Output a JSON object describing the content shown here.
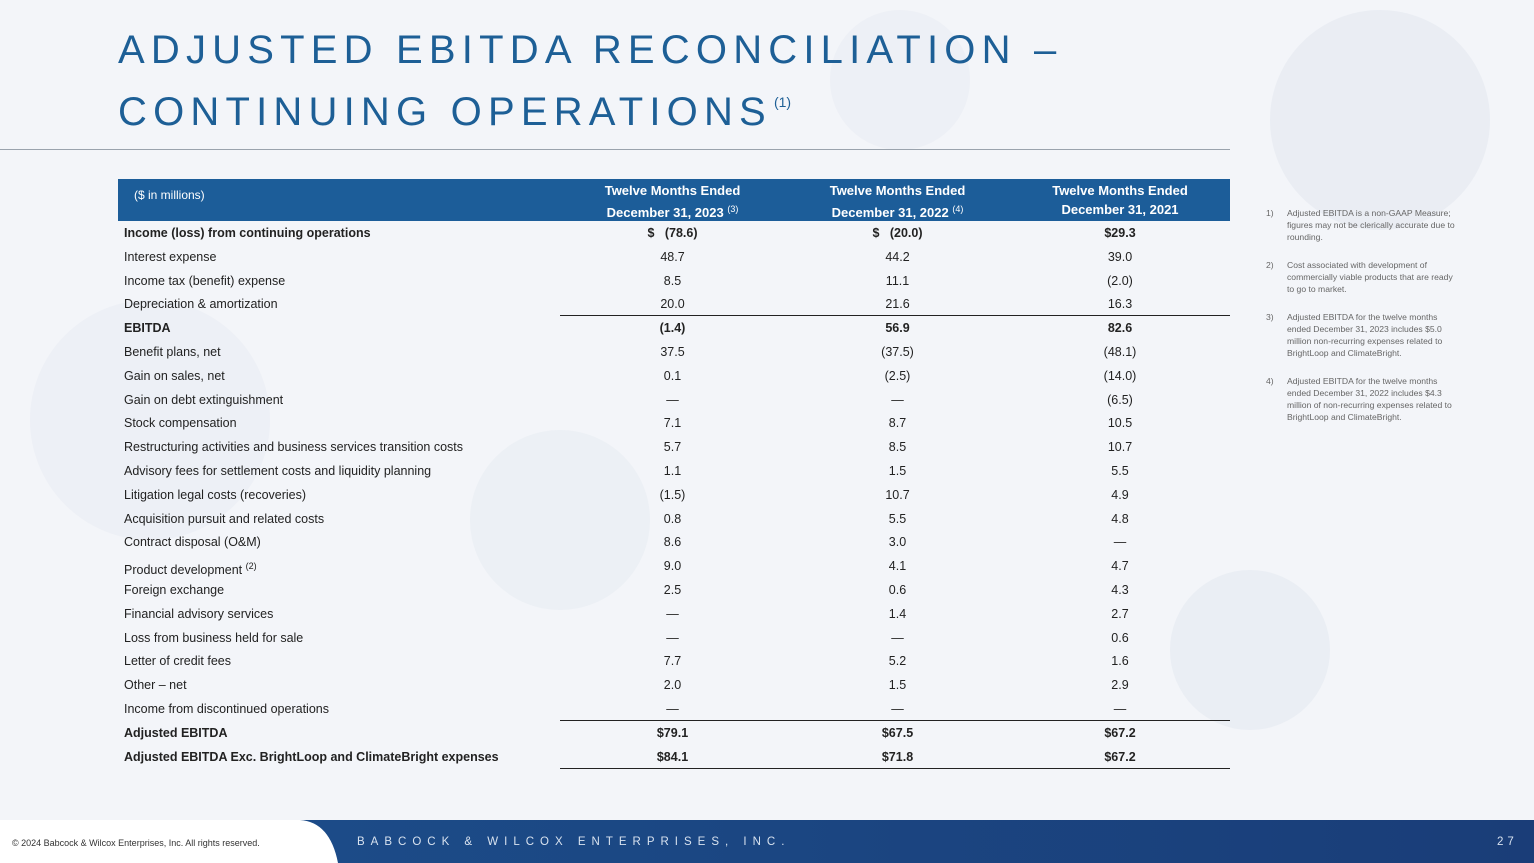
{
  "header": {
    "title_lines": [
      "ADJUSTED EBITDA RECONCILIATION –",
      "CONTINUING OPERATIONS"
    ],
    "title_note": "(1)"
  },
  "table": {
    "corner": "($ in millions)",
    "columns": [
      {
        "line1": "Twelve Months Ended",
        "line2": "December 31, 2023",
        "note": "(3)"
      },
      {
        "line1": "Twelve Months Ended",
        "line2": "December 31, 2022",
        "note": "(4)"
      },
      {
        "line1": "Twelve Months Ended",
        "line2": "December 31, 2021"
      }
    ],
    "rows": [
      {
        "label": "Income (loss) from continuing operations",
        "values": [
          "$   (78.6)",
          "$   (20.0)",
          "$29.3"
        ],
        "bold": true
      },
      {
        "label": "Interest expense",
        "values": [
          "48.7",
          "44.2",
          "39.0"
        ]
      },
      {
        "label": "Income tax (benefit) expense",
        "values": [
          "8.5",
          "11.1",
          "(2.0)"
        ]
      },
      {
        "label": "Depreciation & amortization",
        "values": [
          "20.0",
          "21.6",
          "16.3"
        ]
      },
      {
        "label": "EBITDA",
        "values": [
          "(1.4)",
          "56.9",
          "82.6"
        ],
        "bold": true
      },
      {
        "label": "Benefit plans, net",
        "values": [
          "37.5",
          "(37.5)",
          "(48.1)"
        ]
      },
      {
        "label": "Gain on sales, net",
        "values": [
          "0.1",
          "(2.5)",
          "(14.0)"
        ]
      },
      {
        "label": "Gain on debt extinguishment",
        "values": [
          "—",
          "—",
          "(6.5)"
        ]
      },
      {
        "label": "Stock compensation",
        "values": [
          "7.1",
          "8.7",
          "10.5"
        ]
      },
      {
        "label": "Restructuring activities and business services transition costs",
        "values": [
          "5.7",
          "8.5",
          "10.7"
        ]
      },
      {
        "label": "Advisory fees for settlement costs and liquidity planning",
        "values": [
          "1.1",
          "1.5",
          "5.5"
        ]
      },
      {
        "label": "Litigation legal costs (recoveries)",
        "values": [
          "(1.5)",
          "10.7",
          "4.9"
        ]
      },
      {
        "label": "Acquisition pursuit and related costs",
        "values": [
          "0.8",
          "5.5",
          "4.8"
        ]
      },
      {
        "label": "Contract disposal (O&M)",
        "values": [
          "8.6",
          "3.0",
          "—"
        ]
      },
      {
        "label": "Product development",
        "note": "(2)",
        "values": [
          "9.0",
          "4.1",
          "4.7"
        ]
      },
      {
        "label": "Foreign exchange",
        "values": [
          "2.5",
          "0.6",
          "4.3"
        ]
      },
      {
        "label": "Financial advisory services",
        "values": [
          "—",
          "1.4",
          "2.7"
        ]
      },
      {
        "label": "Loss from business held for sale",
        "values": [
          "—",
          "—",
          "0.6"
        ]
      },
      {
        "label": "Letter of credit fees",
        "values": [
          "7.7",
          "5.2",
          "1.6"
        ]
      },
      {
        "label": "Other – net",
        "values": [
          "2.0",
          "1.5",
          "2.9"
        ]
      },
      {
        "label": "Income from discontinued operations",
        "values": [
          "—",
          "—",
          "—"
        ]
      },
      {
        "label": "Adjusted EBITDA",
        "values": [
          "$79.1",
          "$67.5",
          "$67.2"
        ],
        "bold": true
      },
      {
        "label": "Adjusted EBITDA Exc. BrightLoop and ClimateBright expenses",
        "values": [
          "$84.1",
          "$71.8",
          "$67.2"
        ],
        "bold": true
      }
    ]
  },
  "footnotes": [
    {
      "num": "1)",
      "text": "Adjusted EBITDA is a non-GAAP Measure; figures may not be clerically accurate due to rounding."
    },
    {
      "num": "2)",
      "text": "Cost associated with development of commercially viable products that are ready to go to market."
    },
    {
      "num": "3)",
      "text": "Adjusted EBITDA for the twelve months ended December 31, 2023 includes $5.0 million non-recurring expenses related to BrightLoop and ClimateBright."
    },
    {
      "num": "4)",
      "text": "Adjusted EBITDA for the twelve months ended December 31, 2022 includes $4.3 million of non-recurring expenses related to BrightLoop and ClimateBright."
    }
  ],
  "footer": {
    "copyright": "© 2024 Babcock & Wilcox Enterprises, Inc. All rights reserved.",
    "company": "BABCOCK & WILCOX ENTERPRISES, INC.",
    "page": "27"
  }
}
